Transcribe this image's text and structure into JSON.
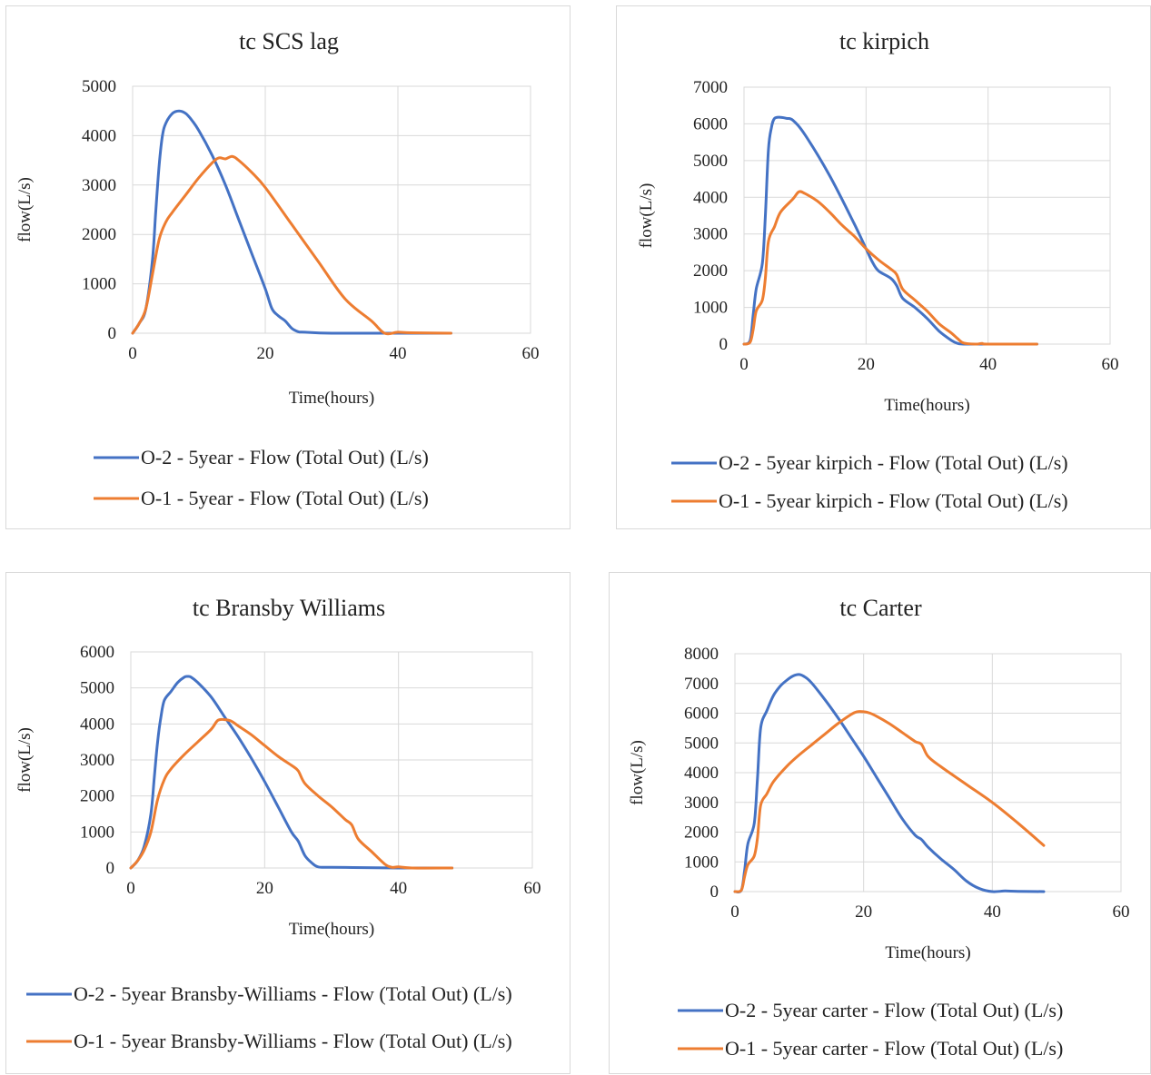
{
  "colors": {
    "o2": "#4472c4",
    "o1": "#ed7d31"
  },
  "chart_data": [
    {
      "type": "line",
      "title": "tc SCS lag",
      "xlabel": "Time(hours)",
      "ylabel": "flow(L/s)",
      "xlim": [
        0,
        60
      ],
      "ylim": [
        0,
        5000
      ],
      "xticks": [
        "0",
        "20",
        "40",
        "60"
      ],
      "yticks": [
        "0",
        "1000",
        "2000",
        "3000",
        "4000",
        "5000"
      ],
      "legend_position": "bottom",
      "series": [
        {
          "name": "O-2 - 5year - Flow (Total Out) (L/s)",
          "color": "#4472c4",
          "x": [
            0,
            1,
            2,
            3,
            3.5,
            4,
            4.5,
            5,
            6,
            7,
            8,
            9,
            10,
            12,
            14,
            16,
            18,
            20,
            21,
            22,
            23,
            24,
            25,
            26,
            30,
            40,
            48
          ],
          "y": [
            0,
            200,
            500,
            1500,
            2500,
            3400,
            4000,
            4250,
            4450,
            4500,
            4450,
            4300,
            4100,
            3600,
            3000,
            2300,
            1600,
            900,
            500,
            350,
            250,
            100,
            30,
            20,
            0,
            0,
            0
          ]
        },
        {
          "name": "O-1 - 5year - Flow (Total Out) (L/s)",
          "color": "#ed7d31",
          "x": [
            0,
            1,
            2,
            3,
            4,
            5,
            6,
            8,
            10,
            12,
            13,
            14,
            15,
            16,
            18,
            20,
            24,
            28,
            32,
            36,
            38,
            40,
            42,
            48
          ],
          "y": [
            0,
            200,
            500,
            1200,
            1900,
            2250,
            2450,
            2800,
            3150,
            3450,
            3550,
            3530,
            3580,
            3500,
            3250,
            2950,
            2200,
            1450,
            700,
            250,
            0,
            20,
            10,
            0
          ]
        }
      ]
    },
    {
      "type": "line",
      "title": "tc kirpich",
      "xlabel": "Time(hours)",
      "ylabel": "flow(L/s)",
      "xlim": [
        0,
        60
      ],
      "ylim": [
        0,
        7000
      ],
      "xticks": [
        "0",
        "20",
        "40",
        "60"
      ],
      "yticks": [
        "0",
        "1000",
        "2000",
        "3000",
        "4000",
        "5000",
        "6000",
        "7000"
      ],
      "legend_position": "bottom",
      "series": [
        {
          "name": "O-2 - 5year kirpich - Flow (Total Out) (L/s)",
          "color": "#4472c4",
          "x": [
            0,
            1,
            1.5,
            2,
            3,
            3.5,
            4,
            4.5,
            5,
            6,
            7,
            8,
            10,
            14,
            18,
            20,
            21,
            22,
            24,
            25,
            26,
            28,
            30,
            32,
            34,
            35,
            36,
            40,
            48
          ],
          "y": [
            0,
            100,
            800,
            1500,
            2200,
            3500,
            5300,
            5900,
            6150,
            6180,
            6150,
            6100,
            5700,
            4600,
            3300,
            2600,
            2250,
            2000,
            1800,
            1600,
            1250,
            1000,
            700,
            350,
            100,
            20,
            0,
            0,
            0
          ]
        },
        {
          "name": "O-1 - 5year kirpich - Flow (Total Out) (L/s)",
          "color": "#ed7d31",
          "x": [
            0,
            1,
            1.5,
            2,
            3,
            3.5,
            4,
            5,
            6,
            8,
            9,
            10,
            12,
            14,
            16,
            18,
            20,
            22,
            24,
            25,
            26,
            28,
            30,
            32,
            34,
            35,
            36,
            38,
            39,
            40,
            48
          ],
          "y": [
            0,
            50,
            400,
            900,
            1200,
            1800,
            2800,
            3200,
            3600,
            3950,
            4150,
            4100,
            3900,
            3600,
            3250,
            2950,
            2600,
            2300,
            2050,
            1900,
            1500,
            1200,
            900,
            550,
            300,
            150,
            30,
            0,
            20,
            0,
            0
          ]
        }
      ]
    },
    {
      "type": "line",
      "title": "tc Bransby Williams",
      "xlabel": "Time(hours)",
      "ylabel": "flow(L/s)",
      "xlim": [
        0,
        60
      ],
      "ylim": [
        0,
        6000
      ],
      "xticks": [
        "0",
        "20",
        "40",
        "60"
      ],
      "yticks": [
        "0",
        "1000",
        "2000",
        "3000",
        "4000",
        "5000",
        "6000"
      ],
      "legend_position": "bottom",
      "series": [
        {
          "name": "O-2 - 5year Bransby-Williams - Flow (Total Out) (L/s)",
          "color": "#4472c4",
          "x": [
            0,
            1,
            2,
            3,
            3.5,
            4,
            4.5,
            5,
            6,
            7,
            8,
            8.5,
            9,
            10,
            12,
            14,
            16,
            18,
            20,
            22,
            24,
            25,
            26,
            27,
            28,
            30,
            35,
            40,
            48
          ],
          "y": [
            0,
            200,
            600,
            1500,
            2500,
            3500,
            4200,
            4650,
            4900,
            5150,
            5300,
            5320,
            5300,
            5150,
            4750,
            4200,
            3650,
            3050,
            2400,
            1700,
            1000,
            750,
            350,
            150,
            30,
            20,
            10,
            0,
            0
          ]
        },
        {
          "name": "O-1 - 5year Bransby-Williams - Flow (Total Out) (L/s)",
          "color": "#ed7d31",
          "x": [
            0,
            1,
            2,
            3,
            4,
            5,
            6,
            8,
            10,
            12,
            13,
            14,
            15,
            16,
            18,
            20,
            22,
            24,
            25,
            26,
            28,
            30,
            32,
            33,
            34,
            36,
            38,
            39,
            40,
            42,
            48
          ],
          "y": [
            0,
            200,
            500,
            1000,
            1900,
            2450,
            2750,
            3150,
            3500,
            3850,
            4100,
            4120,
            4080,
            3950,
            3700,
            3400,
            3100,
            2850,
            2700,
            2350,
            2000,
            1700,
            1350,
            1200,
            800,
            450,
            100,
            20,
            30,
            0,
            0
          ]
        }
      ]
    },
    {
      "type": "line",
      "title": "tc Carter",
      "xlabel": "Time(hours)",
      "ylabel": "flow(L/s)",
      "xlim": [
        0,
        60
      ],
      "ylim": [
        0,
        8000
      ],
      "xticks": [
        "0",
        "20",
        "40",
        "60"
      ],
      "yticks": [
        "0",
        "1000",
        "2000",
        "3000",
        "4000",
        "5000",
        "6000",
        "7000",
        "8000"
      ],
      "legend_position": "bottom",
      "series": [
        {
          "name": "O-2 - 5year carter - Flow (Total Out) (L/s)",
          "color": "#4472c4",
          "x": [
            0,
            1,
            1.5,
            2,
            3,
            3.5,
            4,
            5,
            6,
            7,
            8,
            9,
            10,
            11,
            12,
            14,
            16,
            18,
            20,
            22,
            24,
            26,
            28,
            29,
            30,
            32,
            34,
            36,
            38,
            40,
            42,
            44,
            48
          ],
          "y": [
            0,
            50,
            700,
            1600,
            2300,
            3800,
            5500,
            6100,
            6600,
            6900,
            7100,
            7250,
            7300,
            7200,
            7000,
            6450,
            5850,
            5200,
            4550,
            3850,
            3150,
            2450,
            1900,
            1750,
            1500,
            1100,
            750,
            350,
            100,
            0,
            20,
            10,
            0
          ]
        },
        {
          "name": "O-1 - 5year carter - Flow (Total Out) (L/s)",
          "color": "#ed7d31",
          "x": [
            0,
            1,
            1.5,
            2,
            3,
            3.5,
            4,
            5,
            6,
            8,
            10,
            12,
            14,
            16,
            18,
            19,
            20,
            21,
            22,
            24,
            26,
            28,
            29,
            30,
            32,
            36,
            40,
            44,
            48
          ],
          "y": [
            0,
            50,
            500,
            900,
            1200,
            1800,
            2900,
            3300,
            3700,
            4200,
            4600,
            4950,
            5300,
            5650,
            5950,
            6050,
            6050,
            6000,
            5900,
            5650,
            5350,
            5050,
            4950,
            4550,
            4200,
            3600,
            3000,
            2300,
            1550
          ]
        }
      ]
    }
  ]
}
